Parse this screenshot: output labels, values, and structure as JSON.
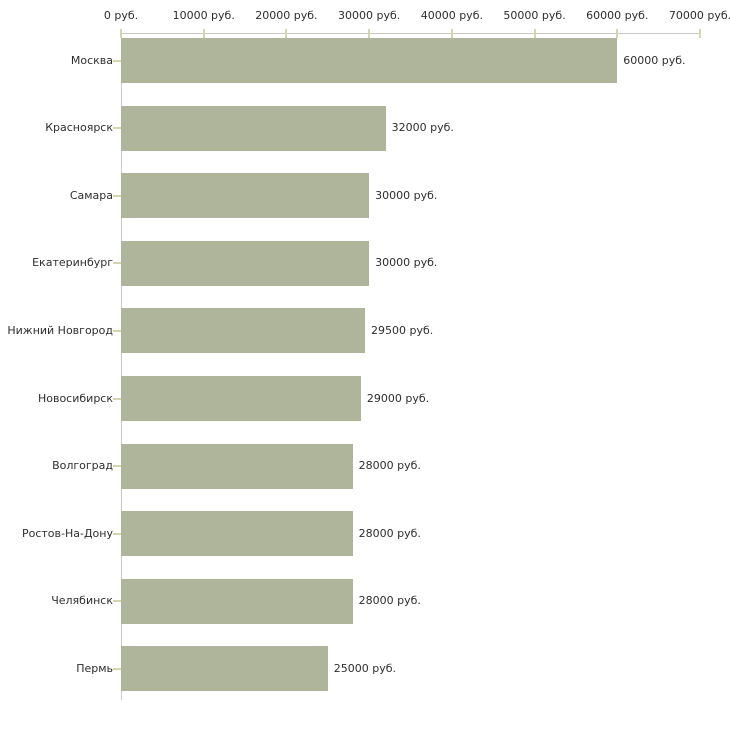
{
  "chart_data": {
    "type": "bar",
    "orientation": "horizontal",
    "title": "",
    "xlabel": "",
    "ylabel": "",
    "unit": "руб.",
    "categories": [
      "Москва",
      "Красноярск",
      "Самара",
      "Екатеринбург",
      "Нижний Новгород",
      "Новосибирск",
      "Волгоград",
      "Ростов-На-Дону",
      "Челябинск",
      "Пермь"
    ],
    "values": [
      60000,
      32000,
      30000,
      30000,
      29500,
      29000,
      28000,
      28000,
      28000,
      25000
    ],
    "value_labels": [
      "60000 руб.",
      "32000 руб.",
      "30000 руб.",
      "30000 руб.",
      "29500 руб.",
      "29000 руб.",
      "28000 руб.",
      "28000 руб.",
      "28000 руб.",
      "25000 руб."
    ],
    "x_ticks": [
      0,
      10000,
      20000,
      30000,
      40000,
      50000,
      60000,
      70000
    ],
    "x_tick_labels": [
      "0 руб.",
      "10000 руб.",
      "20000 руб.",
      "30000 руб.",
      "40000 руб.",
      "50000 руб.",
      "60000 руб.",
      "70000 руб."
    ],
    "xlim": [
      0,
      70000
    ],
    "grid": false,
    "legend": null,
    "colors": {
      "bar": "#aeb59b",
      "axis": "#c9c9c9",
      "tick": "#d6d6ac",
      "text": "#2e2e2e",
      "background": "#ffffff"
    }
  }
}
